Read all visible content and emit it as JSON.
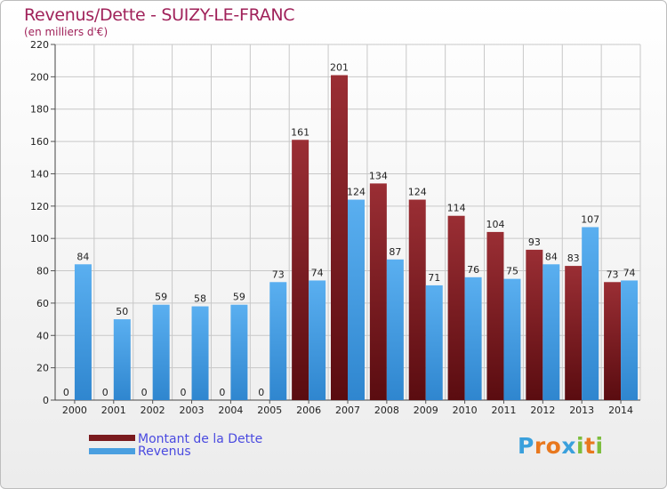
{
  "header": {
    "title": "Revenus/Dette - SUIZY-LE-FRANC",
    "subtitle": "(en milliers d'€)"
  },
  "legend": {
    "dette_label": "Montant de la Dette",
    "revenus_label": "Revenus"
  },
  "logo": {
    "text": "Proxiti",
    "letters": [
      "P",
      "r",
      "o",
      "x",
      "i",
      "t",
      "i"
    ]
  },
  "colors": {
    "dette": "#7a1a1e",
    "revenus": "#4a9fe0",
    "title": "#a0225a",
    "legend_text": "#4a4ae0",
    "grid": "#c8c8c8"
  },
  "chart_data": {
    "type": "bar",
    "title": "Revenus/Dette - SUIZY-LE-FRANC",
    "subtitle": "(en milliers d'€)",
    "categories": [
      "2000",
      "2001",
      "2002",
      "2003",
      "2004",
      "2005",
      "2006",
      "2007",
      "2008",
      "2009",
      "2010",
      "2011",
      "2012",
      "2013",
      "2014"
    ],
    "series": [
      {
        "name": "Montant de la Dette",
        "values": [
          0,
          0,
          0,
          0,
          0,
          0,
          161,
          201,
          134,
          124,
          114,
          104,
          93,
          83,
          73
        ]
      },
      {
        "name": "Revenus",
        "values": [
          84,
          50,
          59,
          58,
          59,
          73,
          74,
          124,
          87,
          71,
          76,
          75,
          84,
          107,
          74
        ]
      }
    ],
    "ylim": [
      0,
      220
    ],
    "yticks": [
      0,
      20,
      40,
      60,
      80,
      100,
      120,
      140,
      160,
      180,
      200,
      220
    ],
    "grid": true,
    "legend_position": "bottom-left"
  }
}
